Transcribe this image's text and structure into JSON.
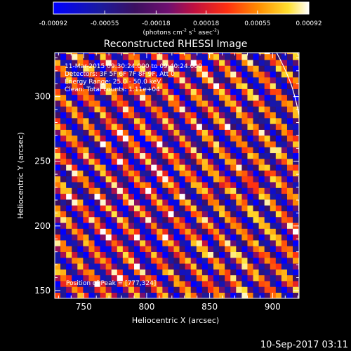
{
  "chart_data": {
    "type": "heatmap",
    "title": "Reconstructed RHESSI Image",
    "xlabel": "Heliocentric X (arcsec)",
    "ylabel": "Heliocentric Y (arcsec)",
    "x_ticks": [
      750,
      800,
      850,
      900
    ],
    "y_ticks": [
      150,
      200,
      250,
      300
    ],
    "xlim": [
      727,
      921
    ],
    "ylim": [
      144,
      334
    ],
    "colorbar": {
      "min": -0.00092,
      "max": 0.00092,
      "ticks": [
        "-0.00092",
        "-0.00055",
        "-0.00018",
        "0.00018",
        "0.00055",
        "0.00092"
      ],
      "label_main": "(photons cm",
      "label_sup1": "-2",
      "label_mid1": " s",
      "label_sup2": "-1",
      "label_mid2": " asec",
      "label_sup3": "-2",
      "label_end": ")",
      "colormap": "blue-purple-red-orange-yellow-white"
    },
    "annotations": {
      "line1": "11-Mar-2015 09:30:24.000 to 09:40:24.000",
      "line2": "Detectors: 3F 5F 6F 7F 8F 9F, Att 0",
      "line3": "Energy Range: 25.0 - 50.0 keV",
      "line4": "Clean: Total counts: 1.11e+04",
      "peak": "Position of Peak = [777,324]"
    },
    "pattern": {
      "description": "diagonal striped fringe pattern",
      "stripe_period_arcsec": 22,
      "stripe_direction_dx_per_dy": 0.27
    },
    "limb": {
      "visible": true,
      "color": "#ffffff"
    }
  },
  "timestamp": "10-Sep-2017 03:11"
}
